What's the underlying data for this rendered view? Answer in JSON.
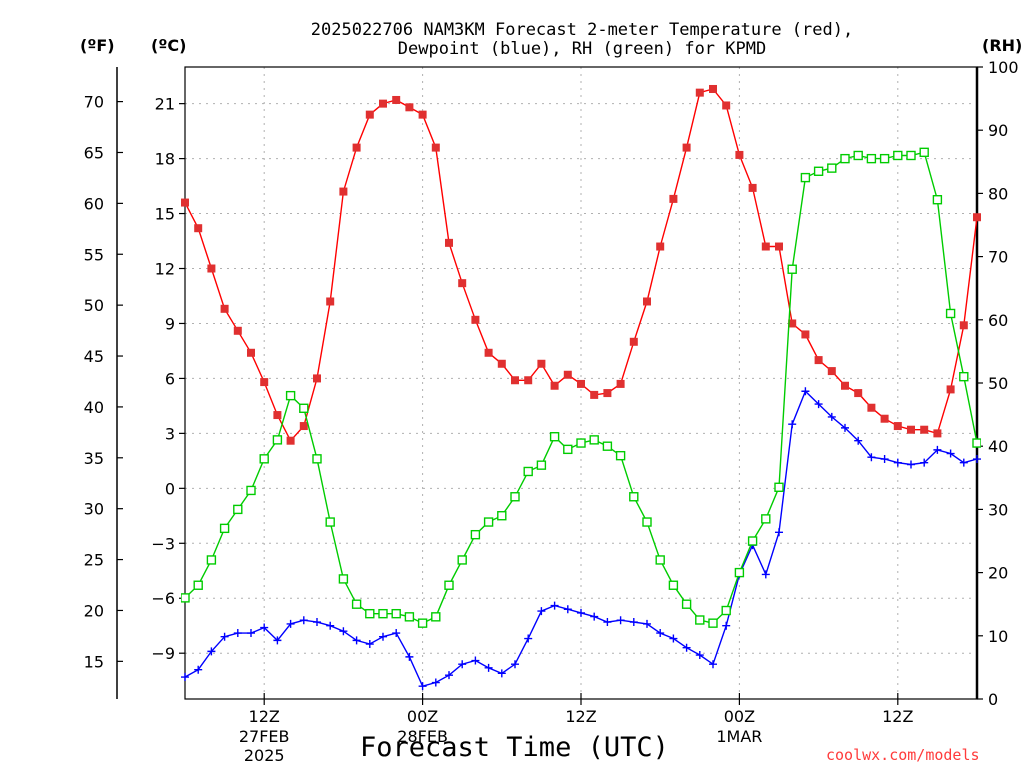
{
  "title": {
    "line1": "2025022706 NAM3KM Forecast 2-meter Temperature (red),",
    "line2": "Dewpoint (blue), RH (green) for KPMD"
  },
  "units": {
    "f": "(ºF)",
    "c": "(ºC)",
    "rh": "(RH)"
  },
  "x_title": "Forecast Time (UTC)",
  "credit": "coolwx.com/models",
  "colors": {
    "temperature": "#ff0000",
    "dewpoint": "#0000ff",
    "rh": "#00cc00",
    "grid": "#b0b0b0"
  },
  "chart_data": {
    "type": "line",
    "title": "2025022706 NAM3KM Forecast 2-meter Temperature (red), Dewpoint (blue), RH (green) for KPMD",
    "xlabel": "Forecast Time (UTC)",
    "x_units": "hours after 2025-02-27 06Z",
    "x": [
      0,
      1,
      2,
      3,
      4,
      5,
      6,
      7,
      8,
      9,
      10,
      11,
      12,
      13,
      14,
      15,
      16,
      17,
      18,
      19,
      20,
      21,
      22,
      23,
      24,
      25,
      26,
      27,
      28,
      29,
      30,
      31,
      32,
      33,
      34,
      35,
      36,
      37,
      38,
      39,
      40,
      41,
      42,
      43,
      44,
      45,
      46,
      47,
      48,
      49,
      50,
      51,
      52,
      53,
      54,
      55,
      56,
      57,
      58,
      59,
      60
    ],
    "x_ticks": [
      {
        "x": 6,
        "label": "12Z",
        "date": "27FEB",
        "year": "2025"
      },
      {
        "x": 18,
        "label": "00Z",
        "date": "28FEB",
        "year": ""
      },
      {
        "x": 30,
        "label": "12Z",
        "date": "",
        "year": ""
      },
      {
        "x": 42,
        "label": "00Z",
        "date": "1MAR",
        "year": ""
      },
      {
        "x": 54,
        "label": "12Z",
        "date": "",
        "year": ""
      }
    ],
    "xlim": [
      0,
      60
    ],
    "y_left_c": {
      "label": "(ºC)",
      "ticks": [
        -9,
        -6,
        -3,
        0,
        3,
        6,
        9,
        12,
        15,
        18,
        21
      ],
      "lim": [
        -11.5,
        23
      ]
    },
    "y_left_f": {
      "label": "(ºF)",
      "ticks": [
        15,
        20,
        25,
        30,
        35,
        40,
        45,
        50,
        55,
        60,
        65,
        70
      ]
    },
    "y_right_rh": {
      "label": "(RH)",
      "ticks": [
        0,
        10,
        20,
        30,
        40,
        50,
        60,
        70,
        80,
        90,
        100
      ],
      "lim": [
        0,
        100
      ]
    },
    "grid": true,
    "series": [
      {
        "name": "Temperature",
        "axis": "left_c",
        "color": "#ff0000",
        "marker": "filled-square",
        "values": [
          15.6,
          14.2,
          12.0,
          9.8,
          8.6,
          7.4,
          5.8,
          4.0,
          2.6,
          3.4,
          6.0,
          10.2,
          16.2,
          18.6,
          20.4,
          21.0,
          21.2,
          20.8,
          20.4,
          18.6,
          13.4,
          11.2,
          9.2,
          7.4,
          6.8,
          5.9,
          5.9,
          6.8,
          5.6,
          6.2,
          5.7,
          5.1,
          5.2,
          5.7,
          8.0,
          10.2,
          13.2,
          15.8,
          18.6,
          21.6,
          21.8,
          20.9,
          18.2,
          16.4,
          13.2,
          13.2,
          9.0,
          8.4,
          7.0,
          6.4,
          5.6,
          5.2,
          4.4,
          3.8,
          3.4,
          3.2,
          3.2,
          3.0,
          5.4,
          8.9,
          14.8
        ]
      },
      {
        "name": "Dewpoint",
        "axis": "left_c",
        "color": "#0000ff",
        "marker": "plus",
        "values": [
          -10.3,
          -9.9,
          -8.9,
          -8.1,
          -7.9,
          -7.9,
          -7.6,
          -8.3,
          -7.4,
          -7.2,
          -7.3,
          -7.5,
          -7.8,
          -8.3,
          -8.5,
          -8.1,
          -7.9,
          -9.2,
          -10.8,
          -10.6,
          -10.2,
          -9.6,
          -9.4,
          -9.8,
          -10.1,
          -9.6,
          -8.2,
          -6.7,
          -6.4,
          -6.6,
          -6.8,
          -7.0,
          -7.3,
          -7.2,
          -7.3,
          -7.4,
          -7.9,
          -8.2,
          -8.7,
          -9.1,
          -9.6,
          -7.5,
          -4.7,
          -3.1,
          -4.7,
          -2.4,
          3.5,
          5.3,
          4.6,
          3.9,
          3.3,
          2.6,
          1.7,
          1.6,
          1.4,
          1.3,
          1.4,
          2.1,
          1.9,
          1.4,
          1.6
        ]
      },
      {
        "name": "RH",
        "axis": "right_rh",
        "color": "#00cc00",
        "marker": "open-square",
        "values": [
          16,
          18,
          22,
          27,
          30,
          33,
          38,
          41,
          48,
          46,
          38,
          28,
          19,
          15,
          13.5,
          13.5,
          13.5,
          13,
          12,
          13,
          18,
          22,
          26,
          28,
          29,
          32,
          36,
          37,
          41.5,
          39.5,
          40.5,
          41,
          40,
          38.5,
          32,
          28,
          22,
          18,
          15,
          12.5,
          12,
          14,
          20,
          25,
          28.5,
          33.5,
          68,
          82.5,
          83.5,
          84,
          85.5,
          86,
          85.5,
          85.5,
          86,
          86,
          86.5,
          79,
          61,
          51,
          40.5
        ]
      }
    ]
  }
}
